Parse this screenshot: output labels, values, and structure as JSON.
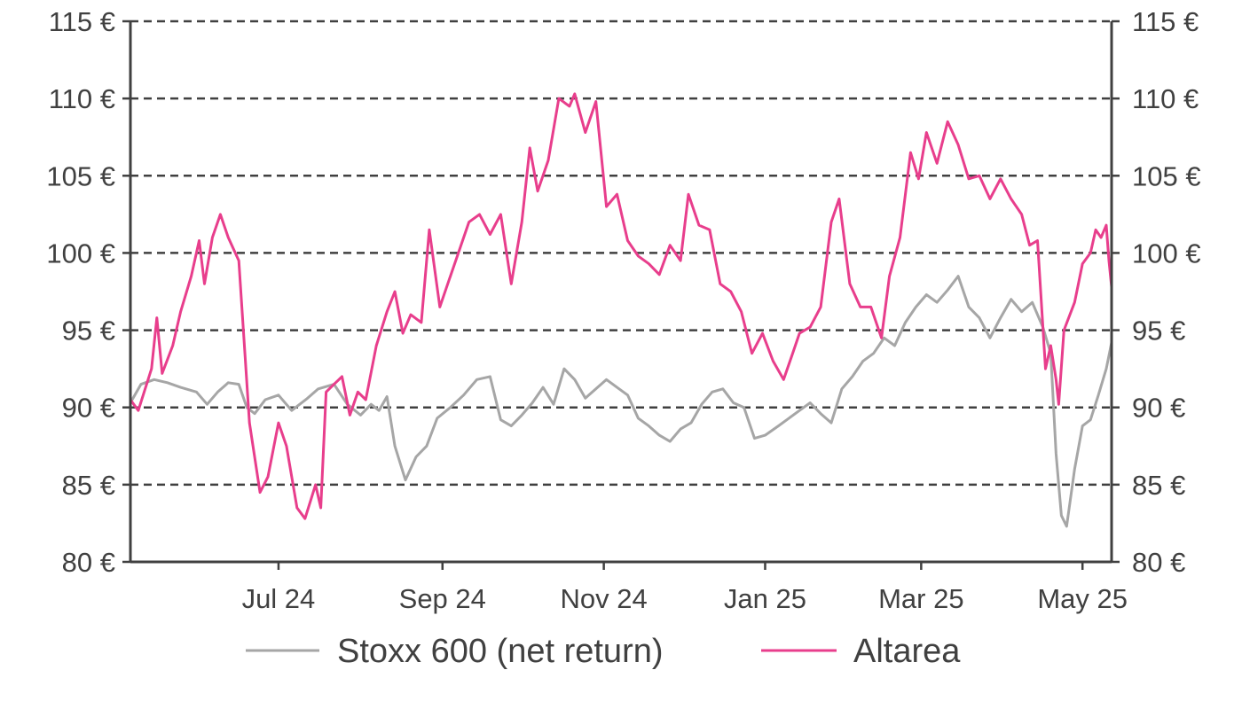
{
  "chart_data": {
    "type": "line",
    "y_ticks": [
      "80 €",
      "85 €",
      "90 €",
      "95 €",
      "100 €",
      "105 €",
      "110 €",
      "115 €"
    ],
    "y_tick_values": [
      80,
      85,
      90,
      95,
      100,
      105,
      110,
      115
    ],
    "ylim": [
      80,
      115
    ],
    "xlim": [
      "2024-05-06",
      "2025-05-12"
    ],
    "x_ticks": [
      {
        "label": "Jul 24",
        "date": "2024-07-01"
      },
      {
        "label": "Sep 24",
        "date": "2024-09-01"
      },
      {
        "label": "Nov 24",
        "date": "2024-11-01"
      },
      {
        "label": "Jan 25",
        "date": "2025-01-01"
      },
      {
        "label": "Mar 25",
        "date": "2025-03-01"
      },
      {
        "label": "May 25",
        "date": "2025-05-01"
      }
    ],
    "grid": "horizontal-dashed",
    "legend_position": "bottom",
    "series": [
      {
        "name": "Stoxx 600 (net return)",
        "color": "#A6A6A6",
        "points": [
          [
            "2024-05-06",
            90.3
          ],
          [
            "2024-05-10",
            91.5
          ],
          [
            "2024-05-15",
            91.8
          ],
          [
            "2024-05-20",
            91.6
          ],
          [
            "2024-05-25",
            91.3
          ],
          [
            "2024-05-31",
            91.0
          ],
          [
            "2024-06-04",
            90.2
          ],
          [
            "2024-06-08",
            91.0
          ],
          [
            "2024-06-12",
            91.6
          ],
          [
            "2024-06-16",
            91.5
          ],
          [
            "2024-06-19",
            90.0
          ],
          [
            "2024-06-22",
            89.6
          ],
          [
            "2024-06-26",
            90.5
          ],
          [
            "2024-07-01",
            90.8
          ],
          [
            "2024-07-06",
            89.8
          ],
          [
            "2024-07-12",
            90.6
          ],
          [
            "2024-07-16",
            91.2
          ],
          [
            "2024-07-22",
            91.5
          ],
          [
            "2024-07-27",
            90.2
          ],
          [
            "2024-08-01",
            89.5
          ],
          [
            "2024-08-05",
            90.2
          ],
          [
            "2024-08-08",
            89.8
          ],
          [
            "2024-08-11",
            90.7
          ],
          [
            "2024-08-14",
            87.5
          ],
          [
            "2024-08-18",
            85.3
          ],
          [
            "2024-08-22",
            86.8
          ],
          [
            "2024-08-26",
            87.5
          ],
          [
            "2024-08-30",
            89.3
          ],
          [
            "2024-09-04",
            90.0
          ],
          [
            "2024-09-09",
            90.8
          ],
          [
            "2024-09-14",
            91.8
          ],
          [
            "2024-09-19",
            92.0
          ],
          [
            "2024-09-23",
            89.2
          ],
          [
            "2024-09-27",
            88.8
          ],
          [
            "2024-10-01",
            89.5
          ],
          [
            "2024-10-05",
            90.3
          ],
          [
            "2024-10-09",
            91.3
          ],
          [
            "2024-10-13",
            90.2
          ],
          [
            "2024-10-17",
            92.5
          ],
          [
            "2024-10-21",
            91.8
          ],
          [
            "2024-10-25",
            90.6
          ],
          [
            "2024-10-29",
            91.2
          ],
          [
            "2024-11-02",
            91.8
          ],
          [
            "2024-11-06",
            91.3
          ],
          [
            "2024-11-10",
            90.8
          ],
          [
            "2024-11-14",
            89.3
          ],
          [
            "2024-11-18",
            88.8
          ],
          [
            "2024-11-22",
            88.2
          ],
          [
            "2024-11-26",
            87.8
          ],
          [
            "2024-11-30",
            88.6
          ],
          [
            "2024-12-04",
            89.0
          ],
          [
            "2024-12-08",
            90.2
          ],
          [
            "2024-12-12",
            91.0
          ],
          [
            "2024-12-16",
            91.2
          ],
          [
            "2024-12-20",
            90.3
          ],
          [
            "2024-12-24",
            90.0
          ],
          [
            "2024-12-28",
            88.0
          ],
          [
            "2025-01-01",
            88.2
          ],
          [
            "2025-01-06",
            88.8
          ],
          [
            "2025-01-10",
            89.3
          ],
          [
            "2025-01-14",
            89.8
          ],
          [
            "2025-01-18",
            90.3
          ],
          [
            "2025-01-22",
            89.6
          ],
          [
            "2025-01-26",
            89.0
          ],
          [
            "2025-01-30",
            91.2
          ],
          [
            "2025-02-03",
            92.0
          ],
          [
            "2025-02-07",
            93.0
          ],
          [
            "2025-02-11",
            93.5
          ],
          [
            "2025-02-15",
            94.5
          ],
          [
            "2025-02-19",
            94.0
          ],
          [
            "2025-02-23",
            95.5
          ],
          [
            "2025-02-27",
            96.5
          ],
          [
            "2025-03-03",
            97.3
          ],
          [
            "2025-03-07",
            96.8
          ],
          [
            "2025-03-11",
            97.6
          ],
          [
            "2025-03-15",
            98.5
          ],
          [
            "2025-03-19",
            96.5
          ],
          [
            "2025-03-23",
            95.8
          ],
          [
            "2025-03-27",
            94.5
          ],
          [
            "2025-03-31",
            95.8
          ],
          [
            "2025-04-04",
            97.0
          ],
          [
            "2025-04-08",
            96.2
          ],
          [
            "2025-04-12",
            96.8
          ],
          [
            "2025-04-16",
            95.2
          ],
          [
            "2025-04-19",
            93.5
          ],
          [
            "2025-04-21",
            87.0
          ],
          [
            "2025-04-23",
            83.0
          ],
          [
            "2025-04-25",
            82.3
          ],
          [
            "2025-04-28",
            86.0
          ],
          [
            "2025-05-01",
            88.8
          ],
          [
            "2025-05-04",
            89.2
          ],
          [
            "2025-05-07",
            90.8
          ],
          [
            "2025-05-10",
            92.5
          ],
          [
            "2025-05-12",
            94.2
          ]
        ]
      },
      {
        "name": "Altarea",
        "color": "#E83E8C",
        "points": [
          [
            "2024-05-06",
            90.5
          ],
          [
            "2024-05-09",
            89.8
          ],
          [
            "2024-05-14",
            92.5
          ],
          [
            "2024-05-16",
            95.8
          ],
          [
            "2024-05-18",
            92.2
          ],
          [
            "2024-05-22",
            94.0
          ],
          [
            "2024-05-25",
            96.2
          ],
          [
            "2024-05-29",
            98.5
          ],
          [
            "2024-06-01",
            100.8
          ],
          [
            "2024-06-03",
            98.0
          ],
          [
            "2024-06-06",
            101.0
          ],
          [
            "2024-06-09",
            102.5
          ],
          [
            "2024-06-12",
            101.0
          ],
          [
            "2024-06-16",
            99.5
          ],
          [
            "2024-06-20",
            89.0
          ],
          [
            "2024-06-24",
            84.5
          ],
          [
            "2024-06-27",
            85.5
          ],
          [
            "2024-07-01",
            89.0
          ],
          [
            "2024-07-04",
            87.5
          ],
          [
            "2024-07-08",
            83.5
          ],
          [
            "2024-07-11",
            82.8
          ],
          [
            "2024-07-15",
            85.0
          ],
          [
            "2024-07-17",
            83.5
          ],
          [
            "2024-07-19",
            91.0
          ],
          [
            "2024-07-22",
            91.5
          ],
          [
            "2024-07-25",
            92.0
          ],
          [
            "2024-07-28",
            89.5
          ],
          [
            "2024-07-31",
            91.0
          ],
          [
            "2024-08-03",
            90.5
          ],
          [
            "2024-08-07",
            94.0
          ],
          [
            "2024-08-11",
            96.2
          ],
          [
            "2024-08-14",
            97.5
          ],
          [
            "2024-08-17",
            94.8
          ],
          [
            "2024-08-20",
            96.0
          ],
          [
            "2024-08-24",
            95.5
          ],
          [
            "2024-08-27",
            101.5
          ],
          [
            "2024-08-31",
            96.5
          ],
          [
            "2024-09-03",
            98.0
          ],
          [
            "2024-09-07",
            100.0
          ],
          [
            "2024-09-11",
            102.0
          ],
          [
            "2024-09-15",
            102.5
          ],
          [
            "2024-09-19",
            101.2
          ],
          [
            "2024-09-23",
            102.5
          ],
          [
            "2024-09-27",
            98.0
          ],
          [
            "2024-10-01",
            102.0
          ],
          [
            "2024-10-04",
            106.8
          ],
          [
            "2024-10-07",
            104.0
          ],
          [
            "2024-10-11",
            106.0
          ],
          [
            "2024-10-15",
            110.0
          ],
          [
            "2024-10-19",
            109.5
          ],
          [
            "2024-10-21",
            110.3
          ],
          [
            "2024-10-25",
            107.8
          ],
          [
            "2024-10-29",
            109.8
          ],
          [
            "2024-11-02",
            103.0
          ],
          [
            "2024-11-06",
            103.8
          ],
          [
            "2024-11-10",
            100.8
          ],
          [
            "2024-11-14",
            99.8
          ],
          [
            "2024-11-18",
            99.3
          ],
          [
            "2024-11-22",
            98.6
          ],
          [
            "2024-11-26",
            100.5
          ],
          [
            "2024-11-30",
            99.5
          ],
          [
            "2024-12-03",
            103.8
          ],
          [
            "2024-12-07",
            101.8
          ],
          [
            "2024-12-11",
            101.5
          ],
          [
            "2024-12-15",
            98.0
          ],
          [
            "2024-12-19",
            97.5
          ],
          [
            "2024-12-23",
            96.2
          ],
          [
            "2024-12-27",
            93.5
          ],
          [
            "2024-12-31",
            94.8
          ],
          [
            "2025-01-04",
            93.0
          ],
          [
            "2025-01-08",
            91.8
          ],
          [
            "2025-01-11",
            93.3
          ],
          [
            "2025-01-14",
            94.8
          ],
          [
            "2025-01-18",
            95.2
          ],
          [
            "2025-01-22",
            96.5
          ],
          [
            "2025-01-26",
            102.0
          ],
          [
            "2025-01-29",
            103.5
          ],
          [
            "2025-02-02",
            98.0
          ],
          [
            "2025-02-06",
            96.5
          ],
          [
            "2025-02-10",
            96.5
          ],
          [
            "2025-02-14",
            94.5
          ],
          [
            "2025-02-17",
            98.5
          ],
          [
            "2025-02-21",
            101.0
          ],
          [
            "2025-02-25",
            106.5
          ],
          [
            "2025-02-28",
            104.8
          ],
          [
            "2025-03-03",
            107.8
          ],
          [
            "2025-03-07",
            105.8
          ],
          [
            "2025-03-11",
            108.5
          ],
          [
            "2025-03-15",
            107.0
          ],
          [
            "2025-03-19",
            104.8
          ],
          [
            "2025-03-23",
            105.0
          ],
          [
            "2025-03-27",
            103.5
          ],
          [
            "2025-03-31",
            104.8
          ],
          [
            "2025-04-04",
            103.5
          ],
          [
            "2025-04-08",
            102.5
          ],
          [
            "2025-04-11",
            100.5
          ],
          [
            "2025-04-14",
            100.8
          ],
          [
            "2025-04-17",
            92.5
          ],
          [
            "2025-04-19",
            94.0
          ],
          [
            "2025-04-21",
            91.8
          ],
          [
            "2025-04-22",
            90.2
          ],
          [
            "2025-04-24",
            95.0
          ],
          [
            "2025-04-28",
            96.8
          ],
          [
            "2025-05-01",
            99.3
          ],
          [
            "2025-05-04",
            100.0
          ],
          [
            "2025-05-06",
            101.5
          ],
          [
            "2025-05-08",
            101.0
          ],
          [
            "2025-05-10",
            101.8
          ],
          [
            "2025-05-11",
            99.5
          ],
          [
            "2025-05-12",
            97.8
          ]
        ]
      }
    ]
  }
}
